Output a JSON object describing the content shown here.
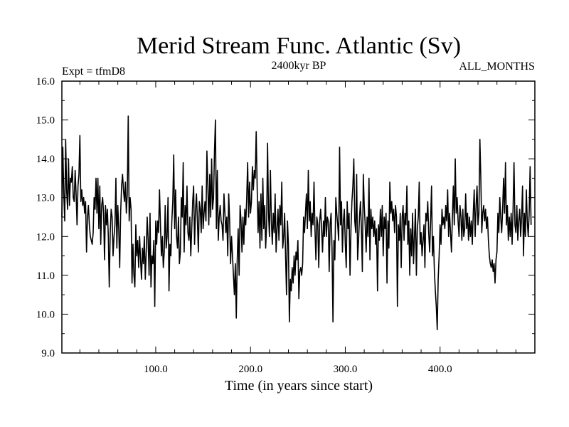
{
  "colors": {
    "background": "#ffffff",
    "line": "#000000",
    "axis": "#000000"
  },
  "chart_data": {
    "type": "line",
    "title": "Merid Stream Func. Atlantic (Sv)",
    "subtitle_left": "Expt = tfmD8",
    "subtitle_center": "2400kyr BP",
    "subtitle_right": "ALL_MONTHS",
    "xlabel": "Time (in years since start)",
    "ylabel": "",
    "xlim": [
      1,
      500
    ],
    "ylim": [
      9.0,
      16.0
    ],
    "x_ticks": [
      100,
      200,
      300,
      400
    ],
    "x_tick_labels": [
      "100.0",
      "200.0",
      "300.0",
      "400.0"
    ],
    "y_ticks": [
      9,
      10,
      11,
      12,
      13,
      14,
      15,
      16
    ],
    "y_tick_labels": [
      "9.0",
      "10.0",
      "11.0",
      "12.0",
      "13.0",
      "14.0",
      "15.0",
      "16.0"
    ],
    "series": [
      {
        "name": "Merid Stream Func. Atlantic",
        "x_start": 1,
        "x_step": 1,
        "values": [
          12.5,
          14.3,
          13.1,
          12.4,
          14.5,
          13.2,
          12.7,
          14.0,
          12.8,
          13.5,
          13.4,
          13.8,
          13.0,
          12.9,
          13.7,
          13.1,
          12.3,
          13.3,
          13.6,
          14.6,
          12.9,
          13.2,
          12.8,
          13.0,
          12.6,
          12.9,
          11.6,
          12.5,
          12.8,
          12.3,
          12.0,
          11.9,
          11.8,
          12.1,
          13.0,
          12.7,
          13.5,
          12.6,
          13.5,
          12.2,
          13.3,
          11.8,
          12.8,
          13.0,
          12.6,
          11.4,
          12.8,
          12.3,
          12.7,
          12.0,
          10.7,
          12.1,
          12.7,
          12.5,
          11.5,
          12.0,
          12.3,
          13.5,
          11.7,
          12.8,
          12.2,
          11.2,
          12.6,
          13.3,
          13.6,
          13.2,
          12.9,
          13.4,
          12.6,
          13.1,
          15.1,
          12.4,
          13.0,
          12.7,
          10.8,
          11.8,
          11.0,
          10.7,
          12.3,
          11.5,
          11.9,
          11.2,
          12.0,
          11.4,
          10.9,
          11.7,
          11.3,
          12.0,
          10.9,
          11.6,
          12.5,
          11.9,
          11.0,
          12.6,
          10.7,
          11.5,
          11.3,
          11.9,
          10.2,
          12.4,
          11.8,
          12.4,
          12.1,
          13.2,
          12.3,
          11.5,
          12.0,
          11.2,
          11.6,
          12.8,
          11.7,
          12.0,
          13.0,
          10.6,
          11.8,
          11.5,
          12.4,
          12.9,
          14.1,
          12.2,
          13.2,
          12.0,
          11.7,
          12.5,
          11.3,
          11.6,
          13.0,
          12.5,
          13.9,
          11.6,
          12.8,
          12.3,
          13.3,
          12.1,
          11.9,
          12.5,
          11.5,
          12.2,
          12.9,
          13.3,
          11.8,
          12.7,
          13.1,
          12.4,
          11.6,
          12.9,
          12.7,
          12.1,
          13.3,
          12.2,
          12.6,
          12.9,
          12.4,
          14.2,
          13.3,
          12.3,
          13.6,
          12.5,
          14.0,
          12.7,
          13.0,
          14.2,
          15.0,
          12.2,
          13.7,
          11.9,
          12.5,
          12.8,
          12.4,
          12.3,
          11.9,
          13.1,
          12.6,
          12.1,
          12.5,
          11.5,
          13.1,
          12.4,
          11.3,
          12.0,
          11.5,
          11.0,
          10.5,
          11.3,
          9.9,
          11.4,
          12.2,
          11.0,
          12.8,
          12.4,
          11.6,
          12.5,
          11.8,
          12.7,
          12.3,
          13.0,
          13.9,
          12.5,
          13.4,
          12.6,
          12.9,
          13.8,
          13.2,
          13.7,
          13.5,
          14.7,
          13.3,
          12.1,
          12.9,
          11.7,
          13.1,
          11.9,
          13.5,
          12.2,
          12.8,
          11.7,
          12.3,
          14.4,
          12.6,
          12.0,
          13.7,
          12.4,
          11.8,
          12.6,
          12.1,
          13.1,
          11.6,
          12.2,
          12.7,
          11.9,
          12.8,
          12.3,
          13.4,
          11.7,
          12.0,
          12.6,
          11.5,
          10.5,
          12.4,
          11.8,
          9.8,
          10.9,
          10.6,
          11.2,
          10.8,
          11.5,
          11.0,
          11.6,
          11.4,
          11.9,
          10.4,
          11.1,
          11.2,
          11.0,
          11.3,
          12.5,
          12.1,
          12.6,
          13.1,
          12.2,
          13.7,
          12.4,
          12.9,
          12.0,
          12.6,
          12.3,
          13.4,
          12.2,
          11.4,
          12.5,
          12.3,
          11.2,
          12.4,
          12.7,
          12.2,
          11.6,
          12.4,
          12.0,
          13.0,
          12.0,
          12.5,
          12.4,
          11.1,
          12.3,
          12.6,
          11.7,
          9.8,
          11.9,
          11.4,
          13.0,
          12.6,
          12.3,
          11.9,
          14.3,
          12.3,
          12.9,
          11.6,
          12.4,
          12.7,
          11.8,
          11.2,
          12.9,
          12.2,
          12.6,
          11.0,
          12.2,
          12.9,
          13.3,
          14.0,
          12.4,
          12.1,
          13.6,
          11.4,
          11.9,
          12.5,
          12.9,
          12.2,
          11.1,
          13.6,
          12.8,
          12.3,
          11.6,
          12.5,
          12.0,
          13.5,
          11.4,
          12.7,
          12.2,
          12.5,
          12.0,
          12.4,
          11.8,
          12.2,
          10.6,
          12.3,
          11.9,
          12.7,
          12.0,
          12.8,
          11.5,
          12.5,
          12.2,
          12.6,
          10.8,
          12.4,
          11.7,
          13.4,
          12.6,
          12.9,
          12.4,
          12.7,
          12.1,
          12.8,
          12.5,
          10.2,
          12.3,
          11.9,
          12.6,
          11.2,
          12.5,
          12.8,
          11.9,
          12.6,
          12.3,
          13.3,
          11.8,
          12.4,
          11.0,
          12.2,
          11.5,
          12.6,
          11.3,
          12.0,
          12.7,
          11.0,
          12.2,
          12.5,
          13.4,
          11.8,
          12.1,
          11.5,
          11.9,
          12.3,
          11.2,
          12.6,
          12.4,
          12.9,
          12.1,
          11.6,
          12.4,
          13.3,
          11.5,
          12.0,
          11.1,
          10.6,
          10.2,
          9.6,
          10.9,
          11.5,
          12.3,
          11.8,
          12.7,
          12.3,
          12.5,
          12.2,
          12.8,
          12.4,
          13.2,
          12.0,
          12.6,
          12.1,
          11.6,
          12.5,
          13.3,
          12.3,
          14.0,
          12.6,
          13.0,
          12.4,
          12.0,
          12.8,
          12.5,
          11.9,
          12.7,
          12.0,
          12.2,
          13.1,
          12.2,
          12.6,
          11.9,
          12.5,
          12.0,
          12.4,
          11.8,
          12.6,
          13.2,
          12.0,
          12.8,
          13.3,
          12.3,
          12.6,
          14.5,
          13.5,
          12.1,
          12.6,
          12.8,
          12.4,
          12.7,
          12.2,
          12.5,
          11.9,
          11.5,
          11.3,
          11.2,
          11.4,
          11.1,
          11.3,
          10.8,
          11.4,
          11.6,
          12.6,
          12.1,
          13.0,
          12.5,
          12.1,
          12.7,
          13.5,
          12.6,
          13.9,
          12.3,
          12.8,
          11.9,
          12.5,
          12.0,
          12.6,
          11.8,
          12.7,
          13.9,
          12.3,
          12.1,
          12.8,
          11.9,
          12.4,
          12.7,
          12.0,
          12.5,
          13.3,
          11.5,
          12.6,
          12.0,
          13.2,
          12.4,
          12.0,
          12.6,
          13.8,
          12.3
        ]
      }
    ]
  }
}
